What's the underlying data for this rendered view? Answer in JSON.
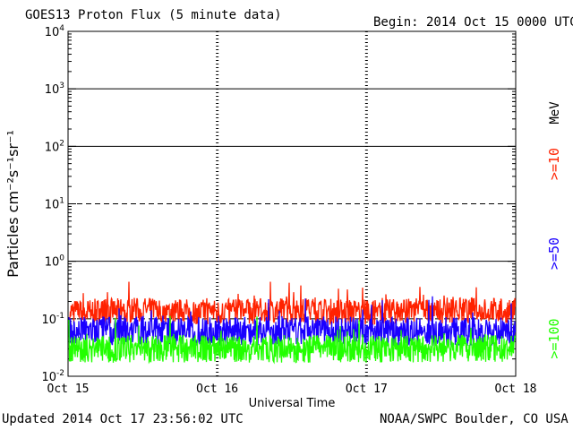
{
  "chart_data": {
    "type": "line",
    "title": "GOES13 Proton Flux (5 minute data)",
    "begin_label": "Begin: 2014 Oct 15 0000 UTC",
    "xlabel": "Universal Time",
    "ylabel": "Particles cm⁻²s⁻¹sr⁻¹",
    "xlim": [
      "2014-10-15",
      "2014-10-18"
    ],
    "x_ticks": [
      "Oct 15",
      "Oct 16",
      "Oct 17",
      "Oct 18"
    ],
    "y_scale": "log",
    "ylim": [
      0.01,
      10000
    ],
    "y_ticks": [
      {
        "base": "10",
        "exp": "-2"
      },
      {
        "base": "10",
        "exp": "-1"
      },
      {
        "base": "10",
        "exp": "0"
      },
      {
        "base": "10",
        "exp": "1"
      },
      {
        "base": "10",
        "exp": "2"
      },
      {
        "base": "10",
        "exp": "3"
      },
      {
        "base": "10",
        "exp": "4"
      }
    ],
    "unit_label": "MeV",
    "series": [
      {
        "name": ">=10",
        "color": "#ff2200",
        "x": [
          "2014-10-15",
          "2014-10-15T12",
          "2014-10-16",
          "2014-10-16T12",
          "2014-10-17",
          "2014-10-17T12",
          "2014-10-18"
        ],
        "y": [
          0.13,
          0.14,
          0.13,
          0.14,
          0.13,
          0.14,
          0.14
        ]
      },
      {
        "name": ">=50",
        "color": "#1a00ff",
        "x": [
          "2014-10-15",
          "2014-10-15T12",
          "2014-10-16",
          "2014-10-16T12",
          "2014-10-17",
          "2014-10-17T12",
          "2014-10-18"
        ],
        "y": [
          0.06,
          0.065,
          0.06,
          0.062,
          0.06,
          0.06,
          0.06
        ]
      },
      {
        "name": ">=100",
        "color": "#22ff00",
        "x": [
          "2014-10-15",
          "2014-10-15T12",
          "2014-10-16",
          "2014-10-16T12",
          "2014-10-17",
          "2014-10-17T12",
          "2014-10-18"
        ],
        "y": [
          0.03,
          0.03,
          0.03,
          0.03,
          0.03,
          0.03,
          0.03
        ]
      }
    ],
    "grid": true
  },
  "footer": {
    "updated": "Updated 2014 Oct 17 23:56:02 UTC",
    "source": "NOAA/SWPC Boulder, CO USA"
  }
}
